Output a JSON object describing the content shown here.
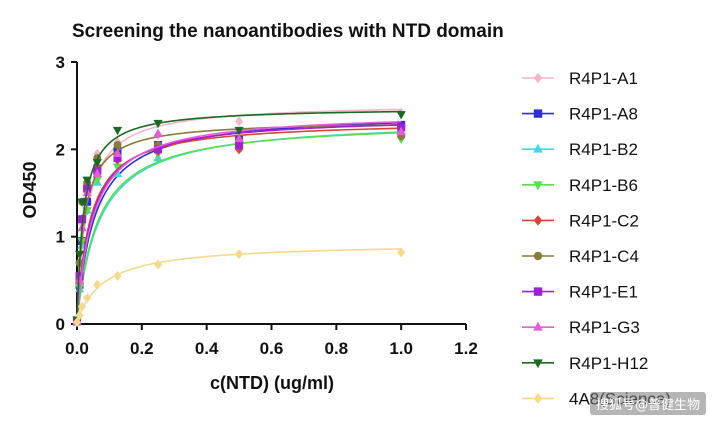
{
  "chart_data": {
    "type": "scatter",
    "title": "Screening the nanoantibodies with NTD domain",
    "xlabel": "c(NTD) (ug/ml)",
    "ylabel": "OD450",
    "xlim": [
      0,
      1.2
    ],
    "ylim": [
      0,
      3
    ],
    "xticks": [
      "0.0",
      "0.2",
      "0.4",
      "0.6",
      "0.8",
      "1.0",
      "1.2"
    ],
    "yticks": [
      "0",
      "1",
      "2",
      "3"
    ],
    "x": [
      0,
      0.0078,
      0.0156,
      0.03125,
      0.0625,
      0.125,
      0.25,
      0.5,
      1.0
    ],
    "series": [
      {
        "name": "R4P1-A1",
        "color": "#f4b6c8",
        "marker": "diamond",
        "bmax": 2.5,
        "kd": 0.03,
        "values": [
          0.04,
          0.55,
          1.15,
          1.6,
          1.95,
          2.08,
          2.16,
          2.32,
          2.42
        ]
      },
      {
        "name": "R4P1-A8",
        "color": "#2c2fd6",
        "marker": "square",
        "bmax": 2.4,
        "kd": 0.055,
        "values": [
          0.03,
          0.45,
          0.95,
          1.4,
          1.78,
          1.98,
          2.05,
          2.12,
          2.28
        ]
      },
      {
        "name": "R4P1-B2",
        "color": "#3fd8e8",
        "marker": "triangle-up",
        "bmax": 2.32,
        "kd": 0.07,
        "values": [
          0.03,
          0.4,
          0.9,
          1.3,
          1.62,
          1.72,
          1.9,
          2.04,
          2.2
        ]
      },
      {
        "name": "R4P1-B6",
        "color": "#57e048",
        "marker": "triangle-down",
        "bmax": 2.3,
        "kd": 0.065,
        "values": [
          0.03,
          0.42,
          0.95,
          1.3,
          1.65,
          1.8,
          1.95,
          2.05,
          2.12
        ]
      },
      {
        "name": "R4P1-C2",
        "color": "#d8443a",
        "marker": "diamond",
        "bmax": 2.3,
        "kd": 0.04,
        "values": [
          0.04,
          0.5,
          1.2,
          1.55,
          1.8,
          1.88,
          1.98,
          2.0,
          2.18
        ]
      },
      {
        "name": "R4P1-C4",
        "color": "#8b7a3a",
        "marker": "circle",
        "bmax": 2.3,
        "kd": 0.022,
        "values": [
          0.04,
          0.7,
          1.4,
          1.62,
          1.9,
          2.05,
          2.05,
          2.1,
          2.15
        ]
      },
      {
        "name": "R4P1-E1",
        "color": "#a020d8",
        "marker": "square",
        "bmax": 2.35,
        "kd": 0.045,
        "values": [
          0.03,
          0.55,
          1.2,
          1.55,
          1.75,
          1.9,
          2.0,
          2.05,
          2.25
        ]
      },
      {
        "name": "R4P1-G3",
        "color": "#e85ad8",
        "marker": "triangle-up",
        "bmax": 2.4,
        "kd": 0.05,
        "values": [
          0.03,
          0.5,
          1.1,
          1.5,
          1.72,
          1.95,
          2.18,
          2.12,
          2.2
        ]
      },
      {
        "name": "R4P1-H12",
        "color": "#1a6b22",
        "marker": "triangle-down",
        "bmax": 2.45,
        "kd": 0.02,
        "values": [
          0.05,
          0.8,
          1.4,
          1.65,
          1.85,
          2.22,
          2.3,
          2.22,
          2.4
        ]
      },
      {
        "name": "4A8(Science)",
        "color": "#f6d98c",
        "marker": "diamond",
        "bmax": 0.9,
        "kd": 0.085,
        "values": [
          0.02,
          0.1,
          0.2,
          0.3,
          0.45,
          0.55,
          0.68,
          0.8,
          0.82
        ]
      }
    ]
  },
  "watermark": "搜狐号@普健生物"
}
